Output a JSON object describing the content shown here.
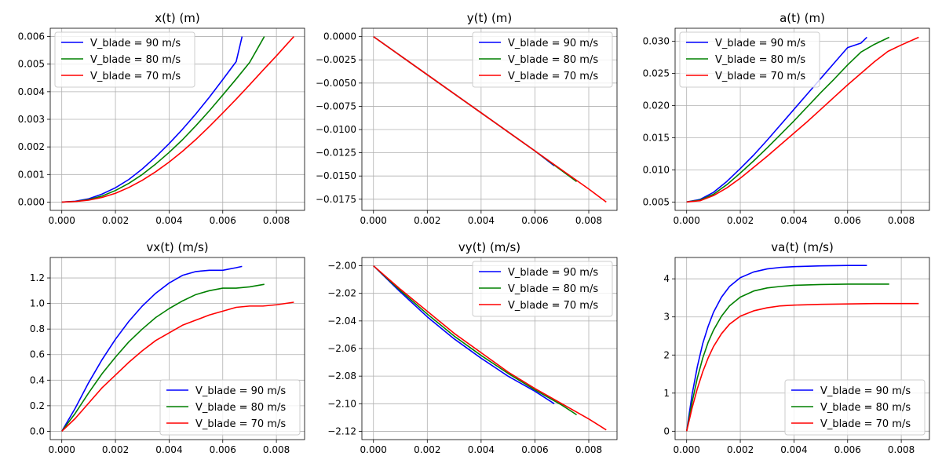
{
  "figure": {
    "background": "#ffffff"
  },
  "colors": {
    "V_blade = 90 m/s": "#0000ff",
    "V_blade = 80 m/s": "#008000",
    "V_blade = 70 m/s": "#ff0000",
    "grid": "#b0b0b0"
  },
  "chart_data": [
    {
      "type": "line",
      "title": "x(t) (m)",
      "xlim": [
        -0.00043,
        0.00905
      ],
      "ylim": [
        -0.0003,
        0.0063
      ],
      "xticks": [
        0.0,
        0.002,
        0.004,
        0.006,
        0.008
      ],
      "xtick_labels": [
        "0.000",
        "0.002",
        "0.004",
        "0.006",
        "0.008"
      ],
      "yticks": [
        0.0,
        0.001,
        0.002,
        0.003,
        0.004,
        0.005,
        0.006
      ],
      "ytick_labels": [
        "0.000",
        "0.001",
        "0.002",
        "0.003",
        "0.004",
        "0.005",
        "0.006"
      ],
      "grid": true,
      "legend": "upper left",
      "series": [
        {
          "name": "V_blade = 90 m/s",
          "color": "#0000ff",
          "x": [
            0.0,
            0.0005,
            0.001,
            0.0015,
            0.002,
            0.0025,
            0.003,
            0.0035,
            0.004,
            0.0045,
            0.005,
            0.0055,
            0.006,
            0.0065,
            0.00672
          ],
          "y": [
            0.0,
            3e-05,
            0.00012,
            0.00029,
            0.00052,
            0.00082,
            0.0012,
            0.00164,
            0.00212,
            0.00264,
            0.0032,
            0.0038,
            0.00444,
            0.00509,
            0.006
          ]
        },
        {
          "name": "V_blade = 80 m/s",
          "color": "#008000",
          "x": [
            0.0,
            0.0005,
            0.001,
            0.0015,
            0.002,
            0.0025,
            0.003,
            0.0035,
            0.004,
            0.0045,
            0.005,
            0.0055,
            0.006,
            0.0065,
            0.007,
            0.00755
          ],
          "y": [
            0.0,
            2e-05,
            9e-05,
            0.00022,
            0.00042,
            0.00068,
            0.001,
            0.00138,
            0.0018,
            0.00226,
            0.00277,
            0.00331,
            0.00388,
            0.00446,
            0.00506,
            0.006
          ]
        },
        {
          "name": "V_blade = 70 m/s",
          "color": "#ff0000",
          "x": [
            0.0,
            0.0005,
            0.001,
            0.0015,
            0.002,
            0.0025,
            0.003,
            0.0035,
            0.004,
            0.0045,
            0.005,
            0.0055,
            0.006,
            0.0065,
            0.007,
            0.0075,
            0.008,
            0.00865
          ],
          "y": [
            0.0,
            2e-05,
            7e-05,
            0.00017,
            0.00032,
            0.00053,
            0.00079,
            0.0011,
            0.00145,
            0.00184,
            0.00227,
            0.00274,
            0.00323,
            0.00373,
            0.00425,
            0.00478,
            0.0053,
            0.006
          ]
        }
      ]
    },
    {
      "type": "line",
      "title": "y(t) (m)",
      "xlim": [
        -0.00043,
        0.00905
      ],
      "ylim": [
        -0.0187,
        0.0009
      ],
      "xticks": [
        0.0,
        0.002,
        0.004,
        0.006,
        0.008
      ],
      "xtick_labels": [
        "0.000",
        "0.002",
        "0.004",
        "0.006",
        "0.008"
      ],
      "yticks": [
        0.0,
        -0.0025,
        -0.005,
        -0.0075,
        -0.01,
        -0.0125,
        -0.015,
        -0.0175
      ],
      "ytick_labels": [
        "0.0000",
        "−0.0025",
        "−0.0050",
        "−0.0075",
        "−0.0100",
        "−0.0125",
        "−0.0150",
        "−0.0175"
      ],
      "grid": true,
      "legend": "upper right",
      "series": [
        {
          "name": "V_blade = 90 m/s",
          "color": "#0000ff",
          "x": [
            0.0,
            0.002,
            0.004,
            0.006,
            0.00672
          ],
          "y": [
            0.0,
            -0.0041,
            -0.0082,
            -0.0123,
            -0.0139
          ]
        },
        {
          "name": "V_blade = 80 m/s",
          "color": "#008000",
          "x": [
            0.0,
            0.002,
            0.004,
            0.006,
            0.00755
          ],
          "y": [
            0.0,
            -0.0041,
            -0.0082,
            -0.0123,
            -0.0156
          ]
        },
        {
          "name": "V_blade = 70 m/s",
          "color": "#ff0000",
          "x": [
            0.0,
            0.002,
            0.004,
            0.006,
            0.008,
            0.00865
          ],
          "y": [
            0.0,
            -0.0041,
            -0.0082,
            -0.0123,
            -0.0164,
            -0.0178
          ]
        }
      ]
    },
    {
      "type": "line",
      "title": "a(t) (m)",
      "xlim": [
        -0.00043,
        0.00905
      ],
      "ylim": [
        0.0037,
        0.032
      ],
      "xticks": [
        0.0,
        0.002,
        0.004,
        0.006,
        0.008
      ],
      "xtick_labels": [
        "0.000",
        "0.002",
        "0.004",
        "0.006",
        "0.008"
      ],
      "yticks": [
        0.005,
        0.01,
        0.015,
        0.02,
        0.025,
        0.03
      ],
      "ytick_labels": [
        "0.005",
        "0.010",
        "0.015",
        "0.020",
        "0.025",
        "0.030"
      ],
      "grid": true,
      "legend": "upper left",
      "series": [
        {
          "name": "V_blade = 90 m/s",
          "color": "#0000ff",
          "x": [
            0.0,
            0.0005,
            0.001,
            0.0015,
            0.002,
            0.0025,
            0.003,
            0.0035,
            0.004,
            0.0045,
            0.005,
            0.0055,
            0.006,
            0.0065,
            0.00672
          ],
          "y": [
            0.005,
            0.0054,
            0.0065,
            0.0082,
            0.0102,
            0.0123,
            0.0146,
            0.017,
            0.0194,
            0.0218,
            0.0242,
            0.0266,
            0.029,
            0.0297,
            0.0306
          ]
        },
        {
          "name": "V_blade = 80 m/s",
          "color": "#008000",
          "x": [
            0.0,
            0.0005,
            0.001,
            0.0015,
            0.002,
            0.0025,
            0.003,
            0.0035,
            0.004,
            0.0045,
            0.005,
            0.0055,
            0.006,
            0.0065,
            0.007,
            0.00755
          ],
          "y": [
            0.005,
            0.0053,
            0.0062,
            0.0077,
            0.0095,
            0.0114,
            0.0134,
            0.0155,
            0.0176,
            0.0198,
            0.022,
            0.0241,
            0.0263,
            0.0283,
            0.0295,
            0.0306
          ]
        },
        {
          "name": "V_blade = 70 m/s",
          "color": "#ff0000",
          "x": [
            0.0,
            0.0005,
            0.001,
            0.0015,
            0.002,
            0.0025,
            0.003,
            0.0035,
            0.004,
            0.0045,
            0.005,
            0.0055,
            0.006,
            0.0065,
            0.007,
            0.0075,
            0.008,
            0.00865
          ],
          "y": [
            0.005,
            0.0052,
            0.006,
            0.0072,
            0.0087,
            0.0104,
            0.0121,
            0.0139,
            0.0157,
            0.0175,
            0.0194,
            0.0213,
            0.0232,
            0.025,
            0.0268,
            0.0284,
            0.0294,
            0.0306
          ]
        }
      ]
    },
    {
      "type": "line",
      "title": "vx(t) (m/s)",
      "xlim": [
        -0.00043,
        0.00905
      ],
      "ylim": [
        -0.065,
        1.36
      ],
      "xticks": [
        0.0,
        0.002,
        0.004,
        0.006,
        0.008
      ],
      "xtick_labels": [
        "0.000",
        "0.002",
        "0.004",
        "0.006",
        "0.008"
      ],
      "yticks": [
        0.0,
        0.2,
        0.4,
        0.6,
        0.8,
        1.0,
        1.2
      ],
      "ytick_labels": [
        "0.0",
        "0.2",
        "0.4",
        "0.6",
        "0.8",
        "1.0",
        "1.2"
      ],
      "grid": true,
      "legend": "lower right",
      "series": [
        {
          "name": "V_blade = 90 m/s",
          "color": "#0000ff",
          "x": [
            0.0,
            0.0005,
            0.001,
            0.0015,
            0.002,
            0.0025,
            0.003,
            0.0035,
            0.004,
            0.0045,
            0.005,
            0.0055,
            0.006,
            0.0065,
            0.00672
          ],
          "y": [
            0.0,
            0.18,
            0.38,
            0.56,
            0.72,
            0.86,
            0.98,
            1.08,
            1.16,
            1.22,
            1.25,
            1.26,
            1.26,
            1.28,
            1.29
          ]
        },
        {
          "name": "V_blade = 80 m/s",
          "color": "#008000",
          "x": [
            0.0,
            0.0005,
            0.001,
            0.0015,
            0.002,
            0.0025,
            0.003,
            0.0035,
            0.004,
            0.0045,
            0.005,
            0.0055,
            0.006,
            0.0065,
            0.007,
            0.00755
          ],
          "y": [
            0.0,
            0.14,
            0.3,
            0.45,
            0.58,
            0.7,
            0.8,
            0.89,
            0.96,
            1.02,
            1.07,
            1.1,
            1.12,
            1.12,
            1.13,
            1.15
          ]
        },
        {
          "name": "V_blade = 70 m/s",
          "color": "#ff0000",
          "x": [
            0.0,
            0.0005,
            0.001,
            0.0015,
            0.002,
            0.0025,
            0.003,
            0.0035,
            0.004,
            0.0045,
            0.005,
            0.0055,
            0.006,
            0.0065,
            0.007,
            0.0075,
            0.008,
            0.00865
          ],
          "y": [
            0.0,
            0.1,
            0.22,
            0.34,
            0.44,
            0.54,
            0.63,
            0.71,
            0.77,
            0.83,
            0.87,
            0.91,
            0.94,
            0.97,
            0.98,
            0.98,
            0.99,
            1.01
          ]
        }
      ]
    },
    {
      "type": "line",
      "title": "vy(t) (m/s)",
      "xlim": [
        -0.00043,
        0.00905
      ],
      "ylim": [
        -2.126,
        -1.994
      ],
      "xticks": [
        0.0,
        0.002,
        0.004,
        0.006,
        0.008
      ],
      "xtick_labels": [
        "0.000",
        "0.002",
        "0.004",
        "0.006",
        "0.008"
      ],
      "yticks": [
        -2.0,
        -2.02,
        -2.04,
        -2.06,
        -2.08,
        -2.1,
        -2.12
      ],
      "ytick_labels": [
        "−2.00",
        "−2.02",
        "−2.04",
        "−2.06",
        "−2.08",
        "−2.10",
        "−2.12"
      ],
      "grid": true,
      "legend": "upper right",
      "series": [
        {
          "name": "V_blade = 90 m/s",
          "color": "#0000ff",
          "x": [
            0.0,
            0.001,
            0.002,
            0.003,
            0.004,
            0.005,
            0.006,
            0.00672
          ],
          "y": [
            -2.0,
            -2.019,
            -2.037,
            -2.053,
            -2.067,
            -2.08,
            -2.091,
            -2.1
          ]
        },
        {
          "name": "V_blade = 80 m/s",
          "color": "#008000",
          "x": [
            0.0,
            0.001,
            0.002,
            0.003,
            0.004,
            0.005,
            0.006,
            0.007,
            0.00755
          ],
          "y": [
            -2.0,
            -2.018,
            -2.035,
            -2.051,
            -2.065,
            -2.078,
            -2.09,
            -2.101,
            -2.108
          ]
        },
        {
          "name": "V_blade = 70 m/s",
          "color": "#ff0000",
          "x": [
            0.0,
            0.001,
            0.002,
            0.003,
            0.004,
            0.005,
            0.006,
            0.007,
            0.008,
            0.00865
          ],
          "y": [
            -2.0,
            -2.017,
            -2.033,
            -2.049,
            -2.063,
            -2.077,
            -2.089,
            -2.1,
            -2.111,
            -2.119
          ]
        }
      ]
    },
    {
      "type": "line",
      "title": "va(t) (m/s)",
      "xlim": [
        -0.00043,
        0.00905
      ],
      "ylim": [
        -0.22,
        4.56
      ],
      "xticks": [
        0.0,
        0.002,
        0.004,
        0.006,
        0.008
      ],
      "xtick_labels": [
        "0.000",
        "0.002",
        "0.004",
        "0.006",
        "0.008"
      ],
      "yticks": [
        0,
        1,
        2,
        3,
        4
      ],
      "ytick_labels": [
        "0",
        "1",
        "2",
        "3",
        "4"
      ],
      "grid": true,
      "legend": "lower right",
      "series": [
        {
          "name": "V_blade = 90 m/s",
          "color": "#0000ff",
          "x": [
            0.0,
            0.0002,
            0.0004,
            0.0006,
            0.0008,
            0.001,
            0.0013,
            0.0016,
            0.002,
            0.0025,
            0.003,
            0.0035,
            0.004,
            0.005,
            0.006,
            0.00672
          ],
          "y": [
            0.0,
            0.95,
            1.7,
            2.3,
            2.75,
            3.12,
            3.52,
            3.8,
            4.03,
            4.18,
            4.26,
            4.3,
            4.32,
            4.34,
            4.35,
            4.35
          ]
        },
        {
          "name": "V_blade = 80 m/s",
          "color": "#008000",
          "x": [
            0.0,
            0.0002,
            0.0004,
            0.0006,
            0.0008,
            0.001,
            0.0013,
            0.0016,
            0.002,
            0.0025,
            0.003,
            0.0035,
            0.004,
            0.005,
            0.006,
            0.007,
            0.00755
          ],
          "y": [
            0.0,
            0.75,
            1.4,
            1.92,
            2.33,
            2.65,
            3.02,
            3.29,
            3.52,
            3.68,
            3.76,
            3.8,
            3.83,
            3.85,
            3.86,
            3.86,
            3.86
          ]
        },
        {
          "name": "V_blade = 70 m/s",
          "color": "#ff0000",
          "x": [
            0.0,
            0.0002,
            0.0004,
            0.0006,
            0.0008,
            0.001,
            0.0013,
            0.0016,
            0.002,
            0.0025,
            0.003,
            0.0035,
            0.004,
            0.005,
            0.006,
            0.007,
            0.008,
            0.00865
          ],
          "y": [
            0.0,
            0.6,
            1.12,
            1.56,
            1.92,
            2.22,
            2.56,
            2.81,
            3.02,
            3.16,
            3.24,
            3.29,
            3.31,
            3.33,
            3.34,
            3.35,
            3.35,
            3.35
          ]
        }
      ]
    }
  ]
}
